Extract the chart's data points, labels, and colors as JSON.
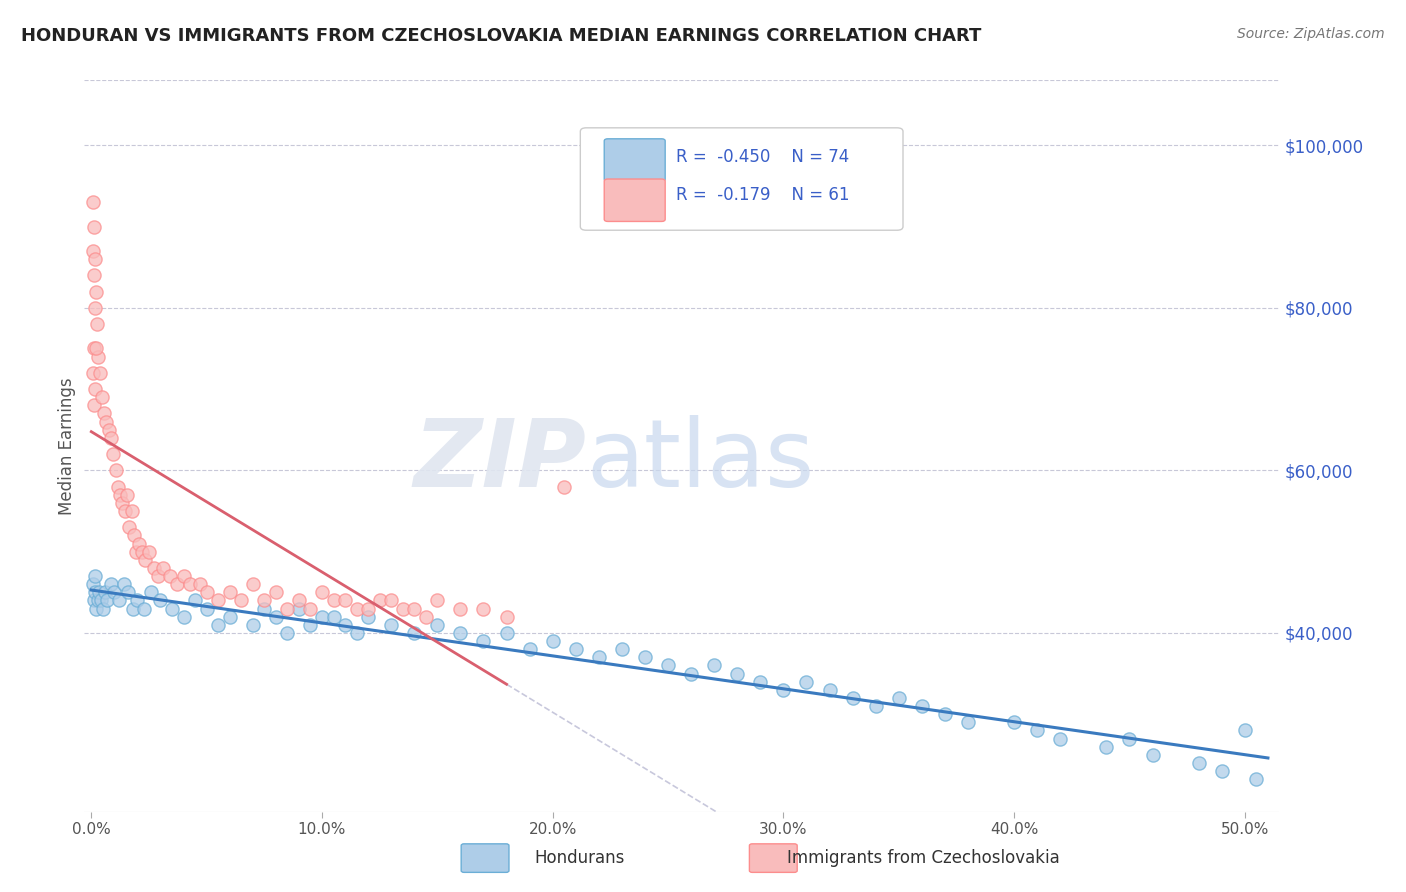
{
  "title": "HONDURAN VS IMMIGRANTS FROM CZECHOSLOVAKIA MEDIAN EARNINGS CORRELATION CHART",
  "source": "Source: ZipAtlas.com",
  "xlabel_vals": [
    0.0,
    10.0,
    20.0,
    30.0,
    40.0,
    50.0
  ],
  "ylabel_vals": [
    40000,
    60000,
    80000,
    100000
  ],
  "ylim": [
    18000,
    108000
  ],
  "xlim": [
    -0.3,
    51.5
  ],
  "blue_color": "#6baed6",
  "pink_color": "#fc8d8d",
  "blue_fill": "#aecde8",
  "pink_fill": "#f9bcbc",
  "trend_blue": "#3a7abf",
  "trend_pink": "#d95f6e",
  "trend_dash_color": "#c8c8dc",
  "legend_R1": "R =  -0.450",
  "legend_N1": "N = 74",
  "legend_R2": "R =  -0.179",
  "legend_N2": "N = 61",
  "label1": "Hondurans",
  "label2": "Immigrants from Czechoslovakia",
  "ylabel": "Median Earnings",
  "title_color": "#222222",
  "axis_label_color": "#3a5fc8",
  "source_color": "#777777",
  "blue_scatter_x": [
    0.08,
    0.12,
    0.15,
    0.18,
    0.22,
    0.28,
    0.35,
    0.42,
    0.5,
    0.6,
    0.7,
    0.85,
    1.0,
    1.2,
    1.4,
    1.6,
    1.8,
    2.0,
    2.3,
    2.6,
    3.0,
    3.5,
    4.0,
    4.5,
    5.0,
    5.5,
    6.0,
    7.0,
    7.5,
    8.0,
    9.0,
    10.0,
    11.0,
    12.0,
    13.0,
    14.0,
    15.0,
    16.0,
    17.0,
    18.0,
    19.0,
    20.0,
    21.0,
    22.0,
    23.0,
    24.0,
    25.0,
    26.0,
    27.0,
    28.0,
    29.0,
    30.0,
    31.0,
    32.0,
    33.0,
    34.0,
    35.0,
    36.0,
    37.0,
    38.0,
    40.0,
    41.0,
    42.0,
    44.0,
    45.0,
    46.0,
    48.0,
    49.0,
    50.0,
    50.5,
    8.5,
    9.5,
    10.5,
    11.5
  ],
  "blue_scatter_y": [
    46000,
    44000,
    47000,
    45000,
    43000,
    44000,
    45000,
    44000,
    43000,
    45000,
    44000,
    46000,
    45000,
    44000,
    46000,
    45000,
    43000,
    44000,
    43000,
    45000,
    44000,
    43000,
    42000,
    44000,
    43000,
    41000,
    42000,
    41000,
    43000,
    42000,
    43000,
    42000,
    41000,
    42000,
    41000,
    40000,
    41000,
    40000,
    39000,
    40000,
    38000,
    39000,
    38000,
    37000,
    38000,
    37000,
    36000,
    35000,
    36000,
    35000,
    34000,
    33000,
    34000,
    33000,
    32000,
    31000,
    32000,
    31000,
    30000,
    29000,
    29000,
    28000,
    27000,
    26000,
    27000,
    25000,
    24000,
    23000,
    28000,
    22000,
    40000,
    41000,
    42000,
    40000
  ],
  "pink_scatter_x": [
    0.08,
    0.1,
    0.13,
    0.16,
    0.2,
    0.25,
    0.3,
    0.38,
    0.45,
    0.55,
    0.65,
    0.75,
    0.85,
    0.95,
    1.05,
    1.15,
    1.25,
    1.35,
    1.45,
    1.55,
    1.65,
    1.75,
    1.85,
    1.95,
    2.05,
    2.2,
    2.35,
    2.5,
    2.7,
    2.9,
    3.1,
    3.4,
    3.7,
    4.0,
    4.3,
    4.7,
    5.0,
    5.5,
    6.0,
    6.5,
    7.0,
    7.5,
    8.0,
    8.5,
    9.0,
    9.5,
    10.0,
    10.5,
    11.0,
    11.5,
    12.0,
    12.5,
    13.0,
    13.5,
    14.0,
    14.5,
    15.0,
    16.0,
    17.0,
    18.0,
    20.5
  ],
  "pink_scatter_y": [
    72000,
    68000,
    75000,
    70000,
    82000,
    78000,
    74000,
    72000,
    69000,
    67000,
    66000,
    65000,
    64000,
    62000,
    60000,
    58000,
    57000,
    56000,
    55000,
    57000,
    53000,
    55000,
    52000,
    50000,
    51000,
    50000,
    49000,
    50000,
    48000,
    47000,
    48000,
    47000,
    46000,
    47000,
    46000,
    46000,
    45000,
    44000,
    45000,
    44000,
    46000,
    44000,
    45000,
    43000,
    44000,
    43000,
    45000,
    44000,
    44000,
    43000,
    43000,
    44000,
    44000,
    43000,
    43000,
    42000,
    44000,
    43000,
    43000,
    42000,
    58000
  ],
  "pink_high_x": [
    0.06,
    0.08,
    0.1,
    0.12,
    0.15,
    0.18,
    0.22
  ],
  "pink_high_y": [
    93000,
    87000,
    84000,
    90000,
    86000,
    80000,
    75000
  ]
}
